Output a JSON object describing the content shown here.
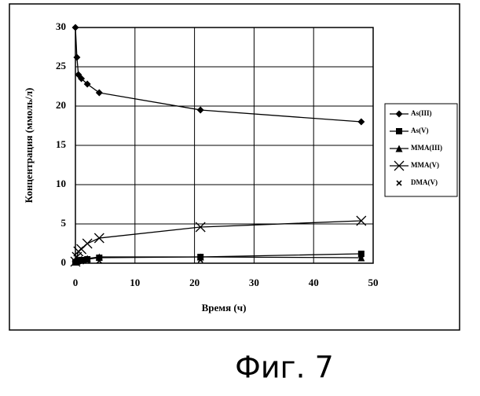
{
  "chart_data": {
    "type": "line",
    "x_label": "Время (ч)",
    "y_label": "Концентрация (ммоль/л)",
    "caption": "Фиг. 7",
    "x": [
      0,
      0.25,
      0.5,
      1,
      2,
      4,
      21,
      48
    ],
    "xlim": [
      0,
      50
    ],
    "xticks": [
      0,
      10,
      20,
      30,
      40,
      50
    ],
    "ylim": [
      0,
      30
    ],
    "yticks": [
      0,
      5,
      10,
      15,
      20,
      25,
      30
    ],
    "grid": true,
    "legend": "right",
    "series": [
      {
        "name": "As(III)",
        "color": "#000000",
        "marker": "diamond",
        "line": true,
        "values": [
          30,
          26.2,
          24,
          23.5,
          22.8,
          21.7,
          19.5,
          18
        ]
      },
      {
        "name": "As(V)",
        "color": "#000000",
        "marker": "square",
        "line": true,
        "values": [
          0.1,
          0.2,
          0.3,
          0.4,
          0.5,
          0.7,
          0.8,
          1.2
        ]
      },
      {
        "name": "MMA(III)",
        "color": "#000000",
        "marker": "triangle",
        "line": true,
        "values": [
          0.2,
          0.3,
          0.4,
          0.5,
          0.6,
          0.8,
          0.8,
          0.7
        ]
      },
      {
        "name": "MMA(V)",
        "color": "#000000",
        "marker": "cross",
        "line": true,
        "values": [
          0.2,
          0.8,
          1.5,
          1.8,
          2.5,
          3.2,
          4.6,
          5.4
        ]
      },
      {
        "name": "DMA(V)",
        "color": "#000000",
        "marker": "x",
        "line": false,
        "values": [
          0.1,
          0.1,
          0.2,
          0.2,
          0.3,
          0.3,
          0.4,
          0.6
        ]
      }
    ]
  }
}
